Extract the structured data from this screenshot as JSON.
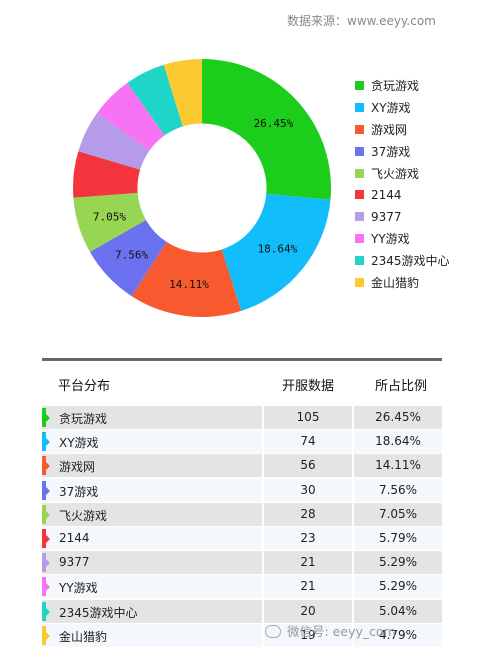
{
  "source": "数据来源：www.eeyy.com",
  "watermark": "微信号: eeyy_com",
  "chart_data": {
    "type": "pie",
    "title": "",
    "categories": [
      "贪玩游戏",
      "XY游戏",
      "游戏网",
      "37游戏",
      "飞火游戏",
      "2144",
      "9377",
      "YY游戏",
      "2345游戏中心",
      "金山猎豹"
    ],
    "values": [
      26.45,
      18.64,
      14.11,
      7.56,
      7.05,
      5.79,
      5.29,
      5.29,
      5.04,
      4.79
    ],
    "colors": [
      "#1ccd1c",
      "#12bdfc",
      "#f75a2e",
      "#6c72ef",
      "#96d652",
      "#f3363e",
      "#b59bea",
      "#f873f3",
      "#1fd5c7",
      "#fcc930"
    ],
    "shown_labels": [
      "26.45%",
      "18.64%",
      "14.11%",
      "7.56%",
      "7.05%",
      "",
      "",
      "",
      "",
      ""
    ],
    "inner_radius_ratio": 0.5,
    "start": "top, clockwise",
    "legend_position": "right"
  },
  "table": {
    "headers": {
      "platform": "平台分布",
      "count": "开服数据",
      "share": "所占比例"
    },
    "rows": [
      {
        "name": "贪玩游戏",
        "count": "105",
        "share": "26.45%"
      },
      {
        "name": "XY游戏",
        "count": "74",
        "share": "18.64%"
      },
      {
        "name": "游戏网",
        "count": "56",
        "share": "14.11%"
      },
      {
        "name": "37游戏",
        "count": "30",
        "share": "7.56%"
      },
      {
        "name": "飞火游戏",
        "count": "28",
        "share": "7.05%"
      },
      {
        "name": "2144",
        "count": "23",
        "share": "5.79%"
      },
      {
        "name": "9377",
        "count": "21",
        "share": "5.29%"
      },
      {
        "name": "YY游戏",
        "count": "21",
        "share": "5.29%"
      },
      {
        "name": "2345游戏中心",
        "count": "20",
        "share": "5.04%"
      },
      {
        "name": "金山猎豹",
        "count": "19",
        "share": "4.79%"
      }
    ]
  }
}
